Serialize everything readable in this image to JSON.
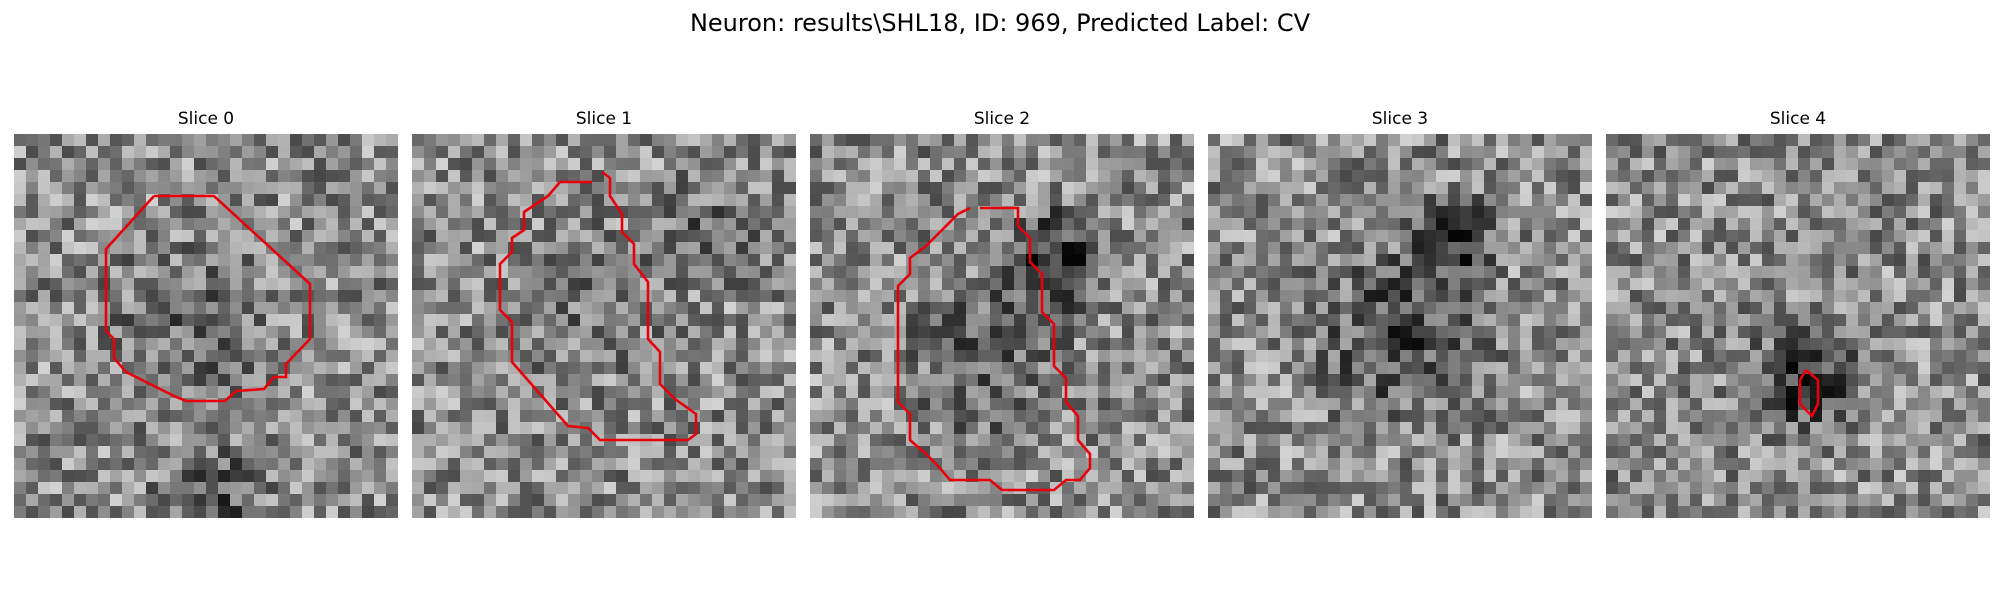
{
  "figure": {
    "title": "Neuron: results\\SHL18, ID: 969, Predicted Label: CV"
  },
  "contour_color": "#e8000b",
  "colormap": "gray",
  "slices": [
    {
      "title": "Slice 0",
      "has_contour": true
    },
    {
      "title": "Slice 1",
      "has_contour": true
    },
    {
      "title": "Slice 2",
      "has_contour": true
    },
    {
      "title": "Slice 3",
      "has_contour": false
    },
    {
      "title": "Slice 4",
      "has_contour": true
    }
  ]
}
